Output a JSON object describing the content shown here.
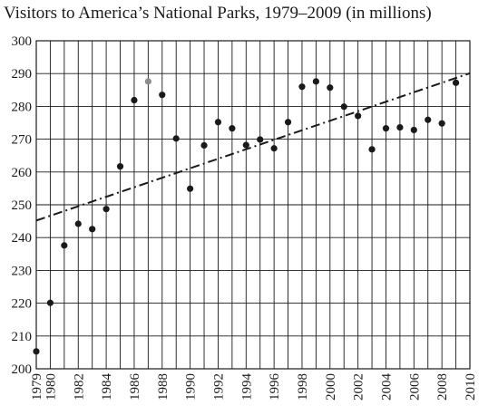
{
  "chart_data": {
    "type": "scatter",
    "title": "Visitors to America’s National Parks, 1979–2009 (in millions)",
    "xlabel": "",
    "ylabel": "",
    "xlim": [
      1979,
      2010
    ],
    "ylim": [
      200,
      300
    ],
    "x_ticks": [
      1979,
      1980,
      1982,
      1984,
      1986,
      1988,
      1990,
      1992,
      1994,
      1996,
      1998,
      2000,
      2002,
      2004,
      2006,
      2008,
      2010
    ],
    "y_ticks": [
      200,
      210,
      220,
      230,
      240,
      250,
      260,
      270,
      280,
      290,
      300
    ],
    "grid": true,
    "points": [
      {
        "x": 1979,
        "y": 205.3
      },
      {
        "x": 1980,
        "y": 220.1
      },
      {
        "x": 1981,
        "y": 237.6
      },
      {
        "x": 1982,
        "y": 244.2
      },
      {
        "x": 1983,
        "y": 242.6
      },
      {
        "x": 1984,
        "y": 248.7
      },
      {
        "x": 1985,
        "y": 261.7
      },
      {
        "x": 1986,
        "y": 281.9
      },
      {
        "x": 1987,
        "y": 287.6,
        "highlight": true
      },
      {
        "x": 1988,
        "y": 283.5
      },
      {
        "x": 1989,
        "y": 270.2
      },
      {
        "x": 1990,
        "y": 254.9
      },
      {
        "x": 1991,
        "y": 268.1
      },
      {
        "x": 1992,
        "y": 275.2
      },
      {
        "x": 1993,
        "y": 273.3
      },
      {
        "x": 1994,
        "y": 268.2
      },
      {
        "x": 1995,
        "y": 269.9
      },
      {
        "x": 1996,
        "y": 267.2
      },
      {
        "x": 1997,
        "y": 275.2
      },
      {
        "x": 1998,
        "y": 286.0
      },
      {
        "x": 1999,
        "y": 287.6
      },
      {
        "x": 2000,
        "y": 285.7
      },
      {
        "x": 2001,
        "y": 279.9
      },
      {
        "x": 2002,
        "y": 277.1
      },
      {
        "x": 2003,
        "y": 266.9
      },
      {
        "x": 2004,
        "y": 273.3
      },
      {
        "x": 2005,
        "y": 273.6
      },
      {
        "x": 2006,
        "y": 272.8
      },
      {
        "x": 2007,
        "y": 275.9
      },
      {
        "x": 2008,
        "y": 274.8
      },
      {
        "x": 2009,
        "y": 287.2
      }
    ],
    "trend_line": {
      "x": [
        1979,
        2010
      ],
      "y": [
        245.2,
        290.1
      ],
      "style": "dash-dot"
    },
    "colors": {
      "point": "#1a1a1a",
      "highlight_point": "#8c8c8c",
      "grid": "#1a1a1a",
      "trend": "#1a1a1a"
    }
  }
}
